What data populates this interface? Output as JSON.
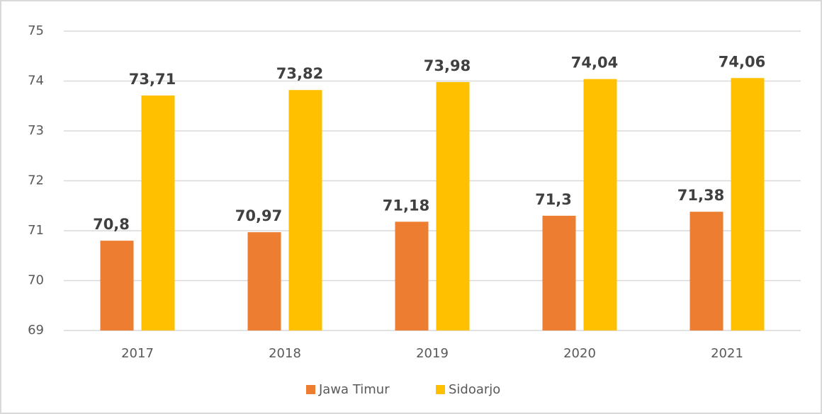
{
  "chart_data": {
    "type": "bar",
    "categories": [
      "2017",
      "2018",
      "2019",
      "2020",
      "2021"
    ],
    "series": [
      {
        "name": "Jawa Timur",
        "color": "#ed7d31",
        "values": [
          70.8,
          70.97,
          71.18,
          71.3,
          71.38
        ],
        "value_labels": [
          "70,8",
          "70,97",
          "71,18",
          "71,3",
          "71,38"
        ]
      },
      {
        "name": "Sidoarjo",
        "color": "#ffc000",
        "values": [
          73.71,
          73.82,
          73.98,
          74.04,
          74.06
        ],
        "value_labels": [
          "73,71",
          "73,82",
          "73,98",
          "74,04",
          "74,06"
        ]
      }
    ],
    "ylim": [
      69,
      75
    ],
    "yticks": [
      69,
      70,
      71,
      72,
      73,
      74,
      75
    ],
    "grid": true,
    "legend": "bottom"
  }
}
